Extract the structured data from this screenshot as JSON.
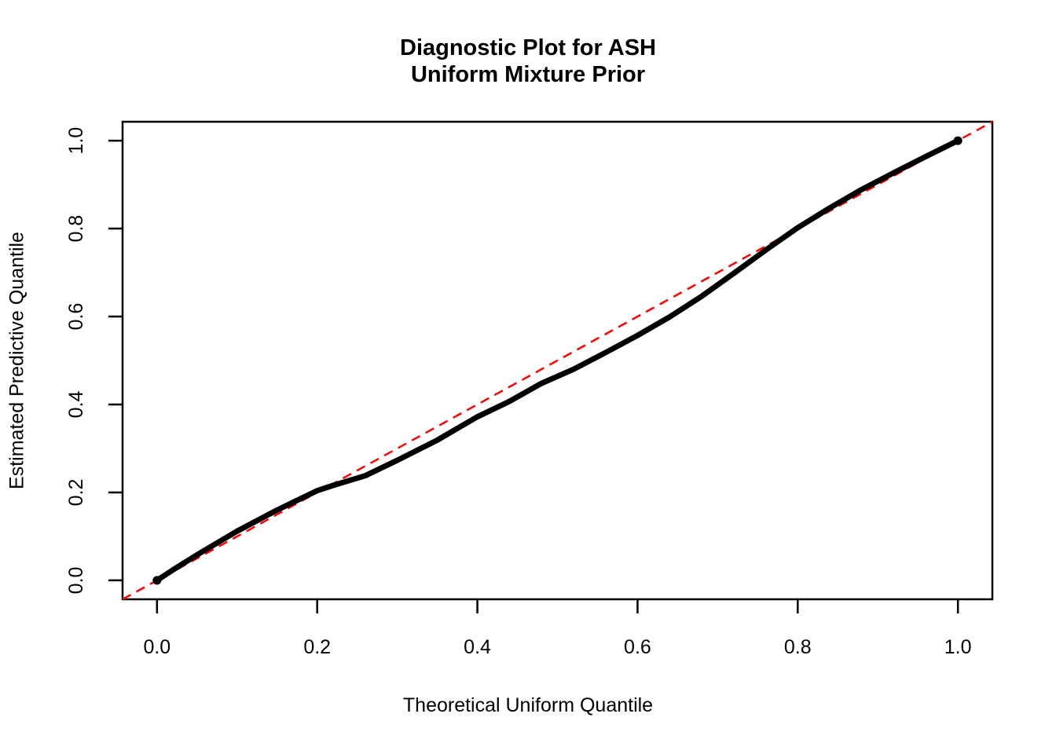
{
  "title": {
    "line1": "Diagnostic Plot for ASH",
    "line2": "Uniform Mixture Prior"
  },
  "axes": {
    "x_label": "Theoretical Uniform Quantile",
    "y_label": "Estimated Predictive Quantile",
    "x_ticks": [
      "0.0",
      "0.2",
      "0.4",
      "0.6",
      "0.8",
      "1.0"
    ],
    "y_ticks": [
      "0.0",
      "0.2",
      "0.4",
      "0.6",
      "0.8",
      "1.0"
    ]
  },
  "colors": {
    "curve": "#000000",
    "reference_line": "#FF0000",
    "axis": "#000000",
    "background": "#FFFFFF"
  },
  "chart_data": {
    "type": "scatter",
    "title": "Diagnostic Plot for ASH\nUniform Mixture Prior",
    "xlabel": "Theoretical Uniform Quantile",
    "ylabel": "Estimated Predictive Quantile",
    "xlim": [
      -0.043,
      1.043
    ],
    "ylim": [
      -0.043,
      1.043
    ],
    "x_tick_values": [
      0.0,
      0.2,
      0.4,
      0.6,
      0.8,
      1.0
    ],
    "y_tick_values": [
      0.0,
      0.2,
      0.4,
      0.6,
      0.8,
      1.0
    ],
    "grid": false,
    "legend": "none",
    "description": "QQ plot: thick black empirical curve of estimated predictive quantiles vs theoretical uniform quantiles, with red dashed y = x reference line. Curve sits slightly above the diagonal for x < 0.22, dips up to ~0.04 below the diagonal around x = 0.5 - 0.65, and rejoins it near x = 0.8.",
    "series": [
      {
        "name": "estimated-quantile-curve",
        "style": "thick-solid-line",
        "color": "#000000",
        "x": [
          0.0,
          0.02,
          0.05,
          0.1,
          0.15,
          0.2,
          0.22,
          0.26,
          0.3,
          0.35,
          0.4,
          0.44,
          0.48,
          0.52,
          0.56,
          0.6,
          0.64,
          0.68,
          0.72,
          0.76,
          0.8,
          0.84,
          0.88,
          0.92,
          0.96,
          1.0
        ],
        "y": [
          0.0,
          0.024,
          0.058,
          0.112,
          0.16,
          0.204,
          0.216,
          0.238,
          0.273,
          0.319,
          0.372,
          0.407,
          0.448,
          0.48,
          0.518,
          0.557,
          0.599,
          0.646,
          0.698,
          0.751,
          0.802,
          0.847,
          0.889,
          0.927,
          0.964,
          1.0
        ]
      },
      {
        "name": "reference-diagonal",
        "style": "dashed-line",
        "color": "#FF0000",
        "x": [
          -0.043,
          1.043
        ],
        "y": [
          -0.043,
          1.043
        ]
      }
    ]
  }
}
